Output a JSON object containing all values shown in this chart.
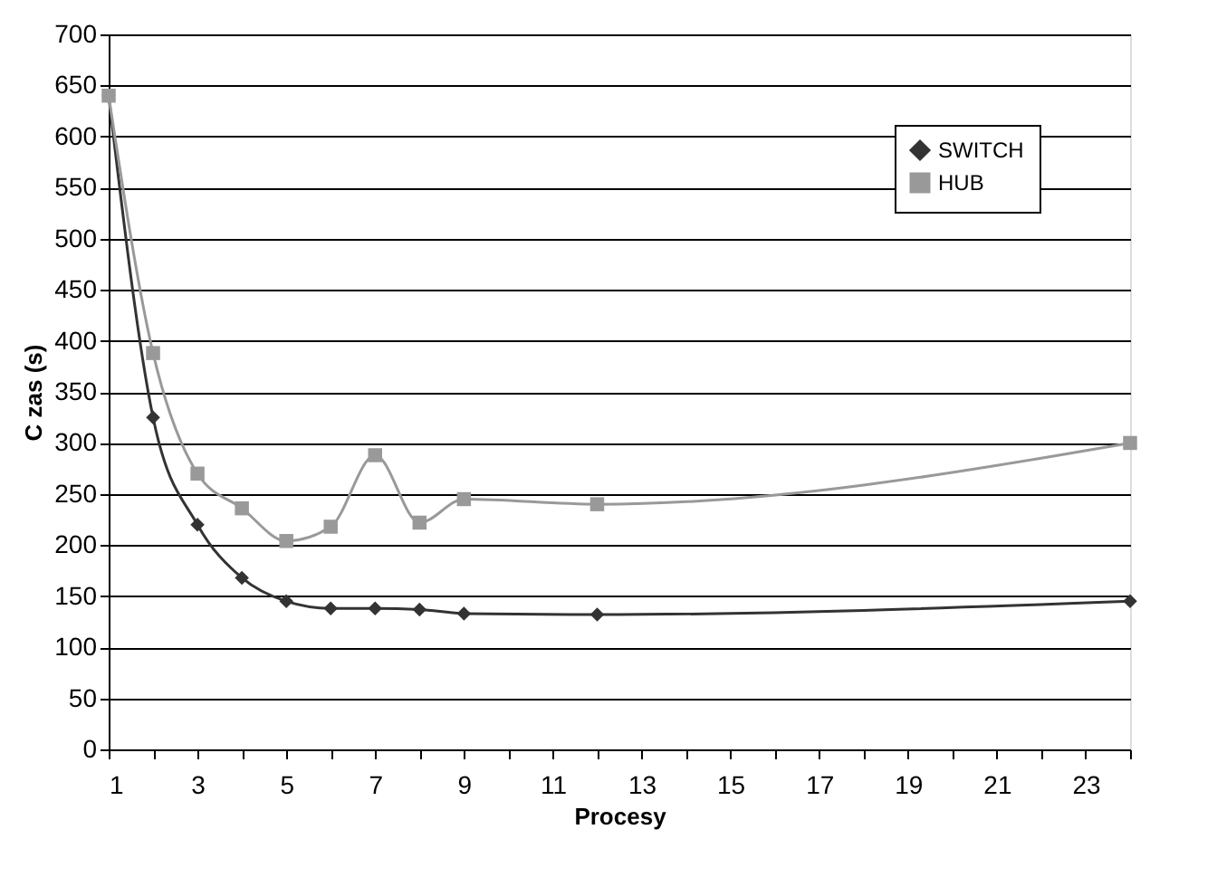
{
  "chart_data": {
    "type": "line",
    "xlabel": "Procesy",
    "ylabel": "C zas (s)",
    "xlim": [
      1,
      24
    ],
    "xticks": [
      1,
      {
        "value": 2,
        "label": null
      },
      3,
      {
        "value": 4,
        "label": null
      },
      5,
      {
        "value": 6,
        "label": null
      },
      7,
      {
        "value": 8,
        "label": null
      },
      9,
      {
        "value": 10,
        "label": null
      },
      11,
      {
        "value": 12,
        "label": null
      },
      13,
      {
        "value": 14,
        "label": null
      },
      15,
      {
        "value": 16,
        "label": null
      },
      17,
      {
        "value": 18,
        "label": null
      },
      19,
      {
        "value": 20,
        "label": null
      },
      21,
      {
        "value": 22,
        "label": null
      },
      23,
      {
        "value": 24,
        "label": null
      }
    ],
    "ylim": [
      0,
      700
    ],
    "yticks": [
      0,
      50,
      100,
      150,
      200,
      250,
      300,
      350,
      400,
      450,
      500,
      550,
      600,
      650,
      700
    ],
    "grid": "y",
    "legend": "top right",
    "line_style": "solid",
    "series": [
      {
        "name": "SWITCH",
        "color": "#333333",
        "marker": "diamond",
        "x": [
          1,
          2,
          3,
          4,
          5,
          6,
          7,
          8,
          9,
          12,
          24
        ],
        "values": [
          640,
          325,
          220,
          168,
          145,
          138,
          138,
          137,
          133,
          132,
          145
        ]
      },
      {
        "name": "HUB",
        "color": "#999999",
        "marker": "square",
        "x": [
          1,
          2,
          3,
          4,
          5,
          6,
          7,
          8,
          9,
          12,
          24
        ],
        "values": [
          640,
          388,
          270,
          236,
          204,
          218,
          288,
          222,
          245,
          240,
          300
        ]
      }
    ]
  }
}
